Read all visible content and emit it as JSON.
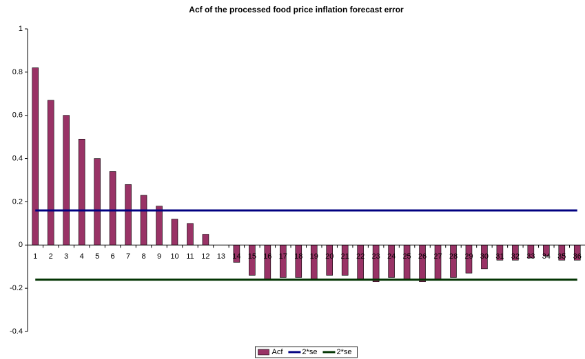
{
  "chart_data": {
    "type": "bar",
    "title": "Acf of the processed food price inflation forecast error",
    "categories": [
      "1",
      "2",
      "3",
      "4",
      "5",
      "6",
      "7",
      "8",
      "9",
      "10",
      "11",
      "12",
      "13",
      "14",
      "15",
      "16",
      "17",
      "18",
      "19",
      "20",
      "21",
      "22",
      "23",
      "24",
      "25",
      "26",
      "27",
      "28",
      "29",
      "30",
      "31",
      "32",
      "33",
      "34",
      "35",
      "36"
    ],
    "series": [
      {
        "name": "Acf",
        "type": "bar",
        "color": "#993366",
        "values": [
          0.82,
          0.67,
          0.6,
          0.49,
          0.4,
          0.34,
          0.28,
          0.23,
          0.18,
          0.12,
          0.1,
          0.05,
          0.0,
          -0.08,
          -0.14,
          -0.16,
          -0.15,
          -0.15,
          -0.16,
          -0.14,
          -0.14,
          -0.16,
          -0.17,
          -0.15,
          -0.16,
          -0.17,
          -0.16,
          -0.15,
          -0.13,
          -0.11,
          -0.07,
          -0.07,
          -0.06,
          -0.05,
          -0.07,
          -0.07
        ]
      },
      {
        "name": "2*se",
        "type": "line",
        "color": "#000080",
        "values": [
          0.16,
          0.16,
          0.16,
          0.16,
          0.16,
          0.16,
          0.16,
          0.16,
          0.16,
          0.16,
          0.16,
          0.16,
          0.16,
          0.16,
          0.16,
          0.16,
          0.16,
          0.16,
          0.16,
          0.16,
          0.16,
          0.16,
          0.16,
          0.16,
          0.16,
          0.16,
          0.16,
          0.16,
          0.16,
          0.16,
          0.16,
          0.16,
          0.16,
          0.16,
          0.16,
          0.16
        ]
      },
      {
        "name": "2*se",
        "type": "line",
        "color": "#003300",
        "values": [
          -0.16,
          -0.16,
          -0.16,
          -0.16,
          -0.16,
          -0.16,
          -0.16,
          -0.16,
          -0.16,
          -0.16,
          -0.16,
          -0.16,
          -0.16,
          -0.16,
          -0.16,
          -0.16,
          -0.16,
          -0.16,
          -0.16,
          -0.16,
          -0.16,
          -0.16,
          -0.16,
          -0.16,
          -0.16,
          -0.16,
          -0.16,
          -0.16,
          -0.16,
          -0.16,
          -0.16,
          -0.16,
          -0.16,
          -0.16,
          -0.16,
          -0.16
        ]
      }
    ],
    "ylim": [
      -0.4,
      1
    ],
    "yticks": [
      -0.4,
      -0.2,
      0,
      0.2,
      0.4,
      0.6,
      0.8,
      1
    ],
    "grid": false,
    "legend": "bottom"
  }
}
